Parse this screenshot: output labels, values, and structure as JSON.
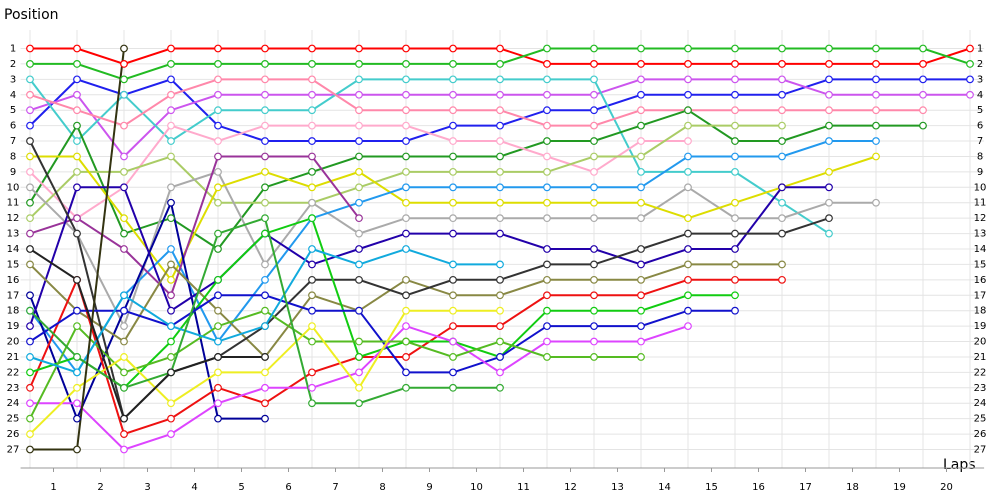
{
  "chart_data": {
    "type": "line",
    "y_label": "Position",
    "x_label": "Laps",
    "x": [
      0,
      1,
      2,
      3,
      4,
      5,
      6,
      7,
      8,
      9,
      10,
      11,
      12,
      13,
      14,
      15,
      16,
      17,
      18,
      19,
      20
    ],
    "xlim": [
      -0.2,
      20.3
    ],
    "xticks": [
      {
        "value": 0.5,
        "label": "1"
      },
      {
        "value": 1.5,
        "label": "2"
      },
      {
        "value": 2.5,
        "label": "3"
      },
      {
        "value": 3.5,
        "label": "4"
      },
      {
        "value": 4.5,
        "label": "5"
      },
      {
        "value": 5.5,
        "label": "6"
      },
      {
        "value": 6.5,
        "label": "7"
      },
      {
        "value": 7.5,
        "label": "8"
      },
      {
        "value": 8.5,
        "label": "9"
      },
      {
        "value": 9.5,
        "label": "10"
      },
      {
        "value": 10.5,
        "label": "11"
      },
      {
        "value": 11.5,
        "label": "12"
      },
      {
        "value": 12.5,
        "label": "13"
      },
      {
        "value": 13.5,
        "label": "14"
      },
      {
        "value": 14.5,
        "label": "15"
      },
      {
        "value": 15.5,
        "label": "16"
      },
      {
        "value": 16.5,
        "label": "17"
      },
      {
        "value": 17.5,
        "label": "18"
      },
      {
        "value": 18.5,
        "label": "19"
      },
      {
        "value": 19.5,
        "label": "20"
      }
    ],
    "ylim": [
      28.2,
      -0.2
    ],
    "yticks": [
      1,
      2,
      3,
      4,
      5,
      6,
      7,
      8,
      9,
      10,
      11,
      12,
      13,
      14,
      15,
      16,
      17,
      18,
      19,
      20,
      21,
      22,
      23,
      24,
      25,
      26,
      27
    ],
    "grid": true,
    "series": [
      {
        "color": "#ff0000",
        "values": [
          1,
          1,
          2,
          1,
          1,
          1,
          1,
          1,
          1,
          1,
          1,
          2,
          2,
          2,
          2,
          2,
          2,
          2,
          2,
          2,
          1
        ]
      },
      {
        "color": "#22bb22",
        "values": [
          2,
          2,
          3,
          2,
          2,
          2,
          2,
          2,
          2,
          2,
          2,
          1,
          1,
          1,
          1,
          1,
          1,
          1,
          1,
          1,
          2
        ]
      },
      {
        "color": "#2020ee",
        "values": [
          6,
          3,
          4,
          3,
          6,
          7,
          7,
          7,
          7,
          6,
          6,
          5,
          5,
          4,
          4,
          4,
          4,
          3,
          3,
          3,
          3
        ]
      },
      {
        "color": "#cc55ee",
        "values": [
          5,
          4,
          8,
          5,
          4,
          4,
          4,
          4,
          4,
          4,
          4,
          4,
          4,
          3,
          3,
          3,
          3,
          4,
          4,
          4,
          4
        ]
      },
      {
        "color": "#44cccc",
        "values": [
          3,
          7,
          4,
          7,
          5,
          5,
          5,
          3,
          3,
          3,
          3,
          3,
          3,
          9,
          9,
          9,
          11,
          13,
          null,
          null,
          null
        ]
      },
      {
        "color": "#ff88aa",
        "values": [
          4,
          5,
          6,
          4,
          3,
          3,
          3,
          5,
          5,
          5,
          5,
          6,
          6,
          5,
          5,
          5,
          5,
          5,
          5,
          5,
          null
        ]
      },
      {
        "color": "#229922",
        "values": [
          11,
          6,
          13,
          12,
          14,
          10,
          9,
          8,
          8,
          8,
          8,
          7,
          7,
          6,
          5,
          7,
          7,
          6,
          6,
          6,
          null
        ]
      },
      {
        "color": "#ffaacc",
        "values": [
          9,
          12,
          10,
          6,
          7,
          6,
          6,
          6,
          6,
          7,
          7,
          8,
          9,
          7,
          7,
          null,
          null,
          null,
          null,
          null,
          null
        ]
      },
      {
        "color": "#aacc66",
        "values": [
          12,
          9,
          9,
          8,
          11,
          11,
          11,
          10,
          9,
          9,
          9,
          9,
          8,
          8,
          6,
          6,
          6,
          null,
          null,
          null,
          null
        ]
      },
      {
        "color": "#aaaaaa",
        "values": [
          10,
          13,
          19,
          10,
          9,
          15,
          11,
          13,
          12,
          12,
          12,
          12,
          12,
          12,
          10,
          12,
          12,
          11,
          11,
          null,
          null
        ]
      },
      {
        "color": "#dddd00",
        "values": [
          8,
          8,
          12,
          16,
          10,
          9,
          10,
          9,
          11,
          11,
          11,
          11,
          11,
          11,
          12,
          11,
          10,
          9,
          8,
          null,
          null
        ]
      },
      {
        "color": "#2299ee",
        "values": [
          18,
          22,
          17,
          14,
          20,
          16,
          12,
          11,
          10,
          10,
          10,
          10,
          10,
          10,
          8,
          8,
          8,
          7,
          7,
          null,
          null
        ]
      },
      {
        "color": "#993399",
        "values": [
          13,
          12,
          14,
          17,
          8,
          8,
          8,
          12,
          null,
          null,
          null,
          null,
          null,
          null,
          null,
          null,
          null,
          null,
          null,
          null,
          null
        ]
      },
      {
        "color": "#000099",
        "values": [
          17,
          25,
          18,
          11,
          25,
          25,
          null,
          null,
          null,
          null,
          null,
          null,
          null,
          null,
          null,
          null,
          null,
          null,
          null,
          null,
          null
        ]
      },
      {
        "color": "#2200aa",
        "values": [
          19,
          10,
          10,
          18,
          16,
          13,
          15,
          14,
          13,
          13,
          13,
          14,
          14,
          15,
          14,
          14,
          10,
          10,
          null,
          null,
          null
        ]
      },
      {
        "color": "#888844",
        "values": [
          15,
          18,
          20,
          15,
          18,
          21,
          17,
          18,
          16,
          17,
          17,
          16,
          16,
          16,
          15,
          15,
          15,
          null,
          null,
          null,
          null
        ]
      },
      {
        "color": "#333333",
        "values": [
          7,
          13,
          25,
          22,
          21,
          19,
          16,
          16,
          17,
          16,
          16,
          15,
          15,
          14,
          13,
          13,
          13,
          12,
          null,
          null,
          null
        ]
      },
      {
        "color": "#ee1111",
        "values": [
          23,
          16,
          26,
          25,
          23,
          24,
          22,
          21,
          21,
          19,
          19,
          17,
          17,
          17,
          16,
          16,
          16,
          null,
          null,
          null,
          null
        ]
      },
      {
        "color": "#11cc11",
        "values": [
          22,
          21,
          23,
          20,
          16,
          13,
          12,
          21,
          20,
          20,
          21,
          18,
          18,
          18,
          17,
          17,
          null,
          null,
          null,
          null,
          null
        ]
      },
      {
        "color": "#1111cc",
        "values": [
          20,
          18,
          18,
          19,
          17,
          17,
          18,
          18,
          22,
          22,
          21,
          19,
          19,
          19,
          18,
          18,
          null,
          null,
          null,
          null,
          null
        ]
      },
      {
        "color": "#dd44ff",
        "values": [
          24,
          24,
          27,
          26,
          24,
          23,
          23,
          22,
          19,
          20,
          22,
          20,
          20,
          20,
          19,
          null,
          null,
          null,
          null,
          null,
          null
        ]
      },
      {
        "color": "#55bb22",
        "values": [
          25,
          19,
          22,
          21,
          19,
          18,
          20,
          20,
          20,
          21,
          20,
          21,
          21,
          21,
          null,
          null,
          null,
          null,
          null,
          null,
          null
        ]
      },
      {
        "color": "#eeee22",
        "values": [
          26,
          23,
          21,
          24,
          22,
          22,
          19,
          23,
          18,
          18,
          18,
          null,
          null,
          null,
          null,
          null,
          null,
          null,
          null,
          null,
          null
        ]
      },
      {
        "color": "#11aadd",
        "values": [
          21,
          22,
          17,
          19,
          20,
          19,
          14,
          15,
          14,
          15,
          15,
          null,
          null,
          null,
          null,
          null,
          null,
          null,
          null,
          null,
          null
        ]
      },
      {
        "color": "#33aa33",
        "values": [
          18,
          21,
          23,
          22,
          13,
          12,
          24,
          24,
          23,
          23,
          23,
          null,
          null,
          null,
          null,
          null,
          null,
          null,
          null,
          null,
          null
        ]
      },
      {
        "color": "#333311",
        "values": [
          27,
          27,
          1,
          null,
          null,
          null,
          null,
          null,
          null,
          null,
          null,
          null,
          null,
          null,
          null,
          null,
          null,
          null,
          null,
          null,
          null
        ]
      },
      {
        "color": "#222222",
        "values": [
          14,
          16,
          25,
          22,
          21,
          21,
          null,
          null,
          null,
          null,
          null,
          null,
          null,
          null,
          null,
          null,
          null,
          null,
          null,
          null,
          null
        ]
      }
    ]
  }
}
